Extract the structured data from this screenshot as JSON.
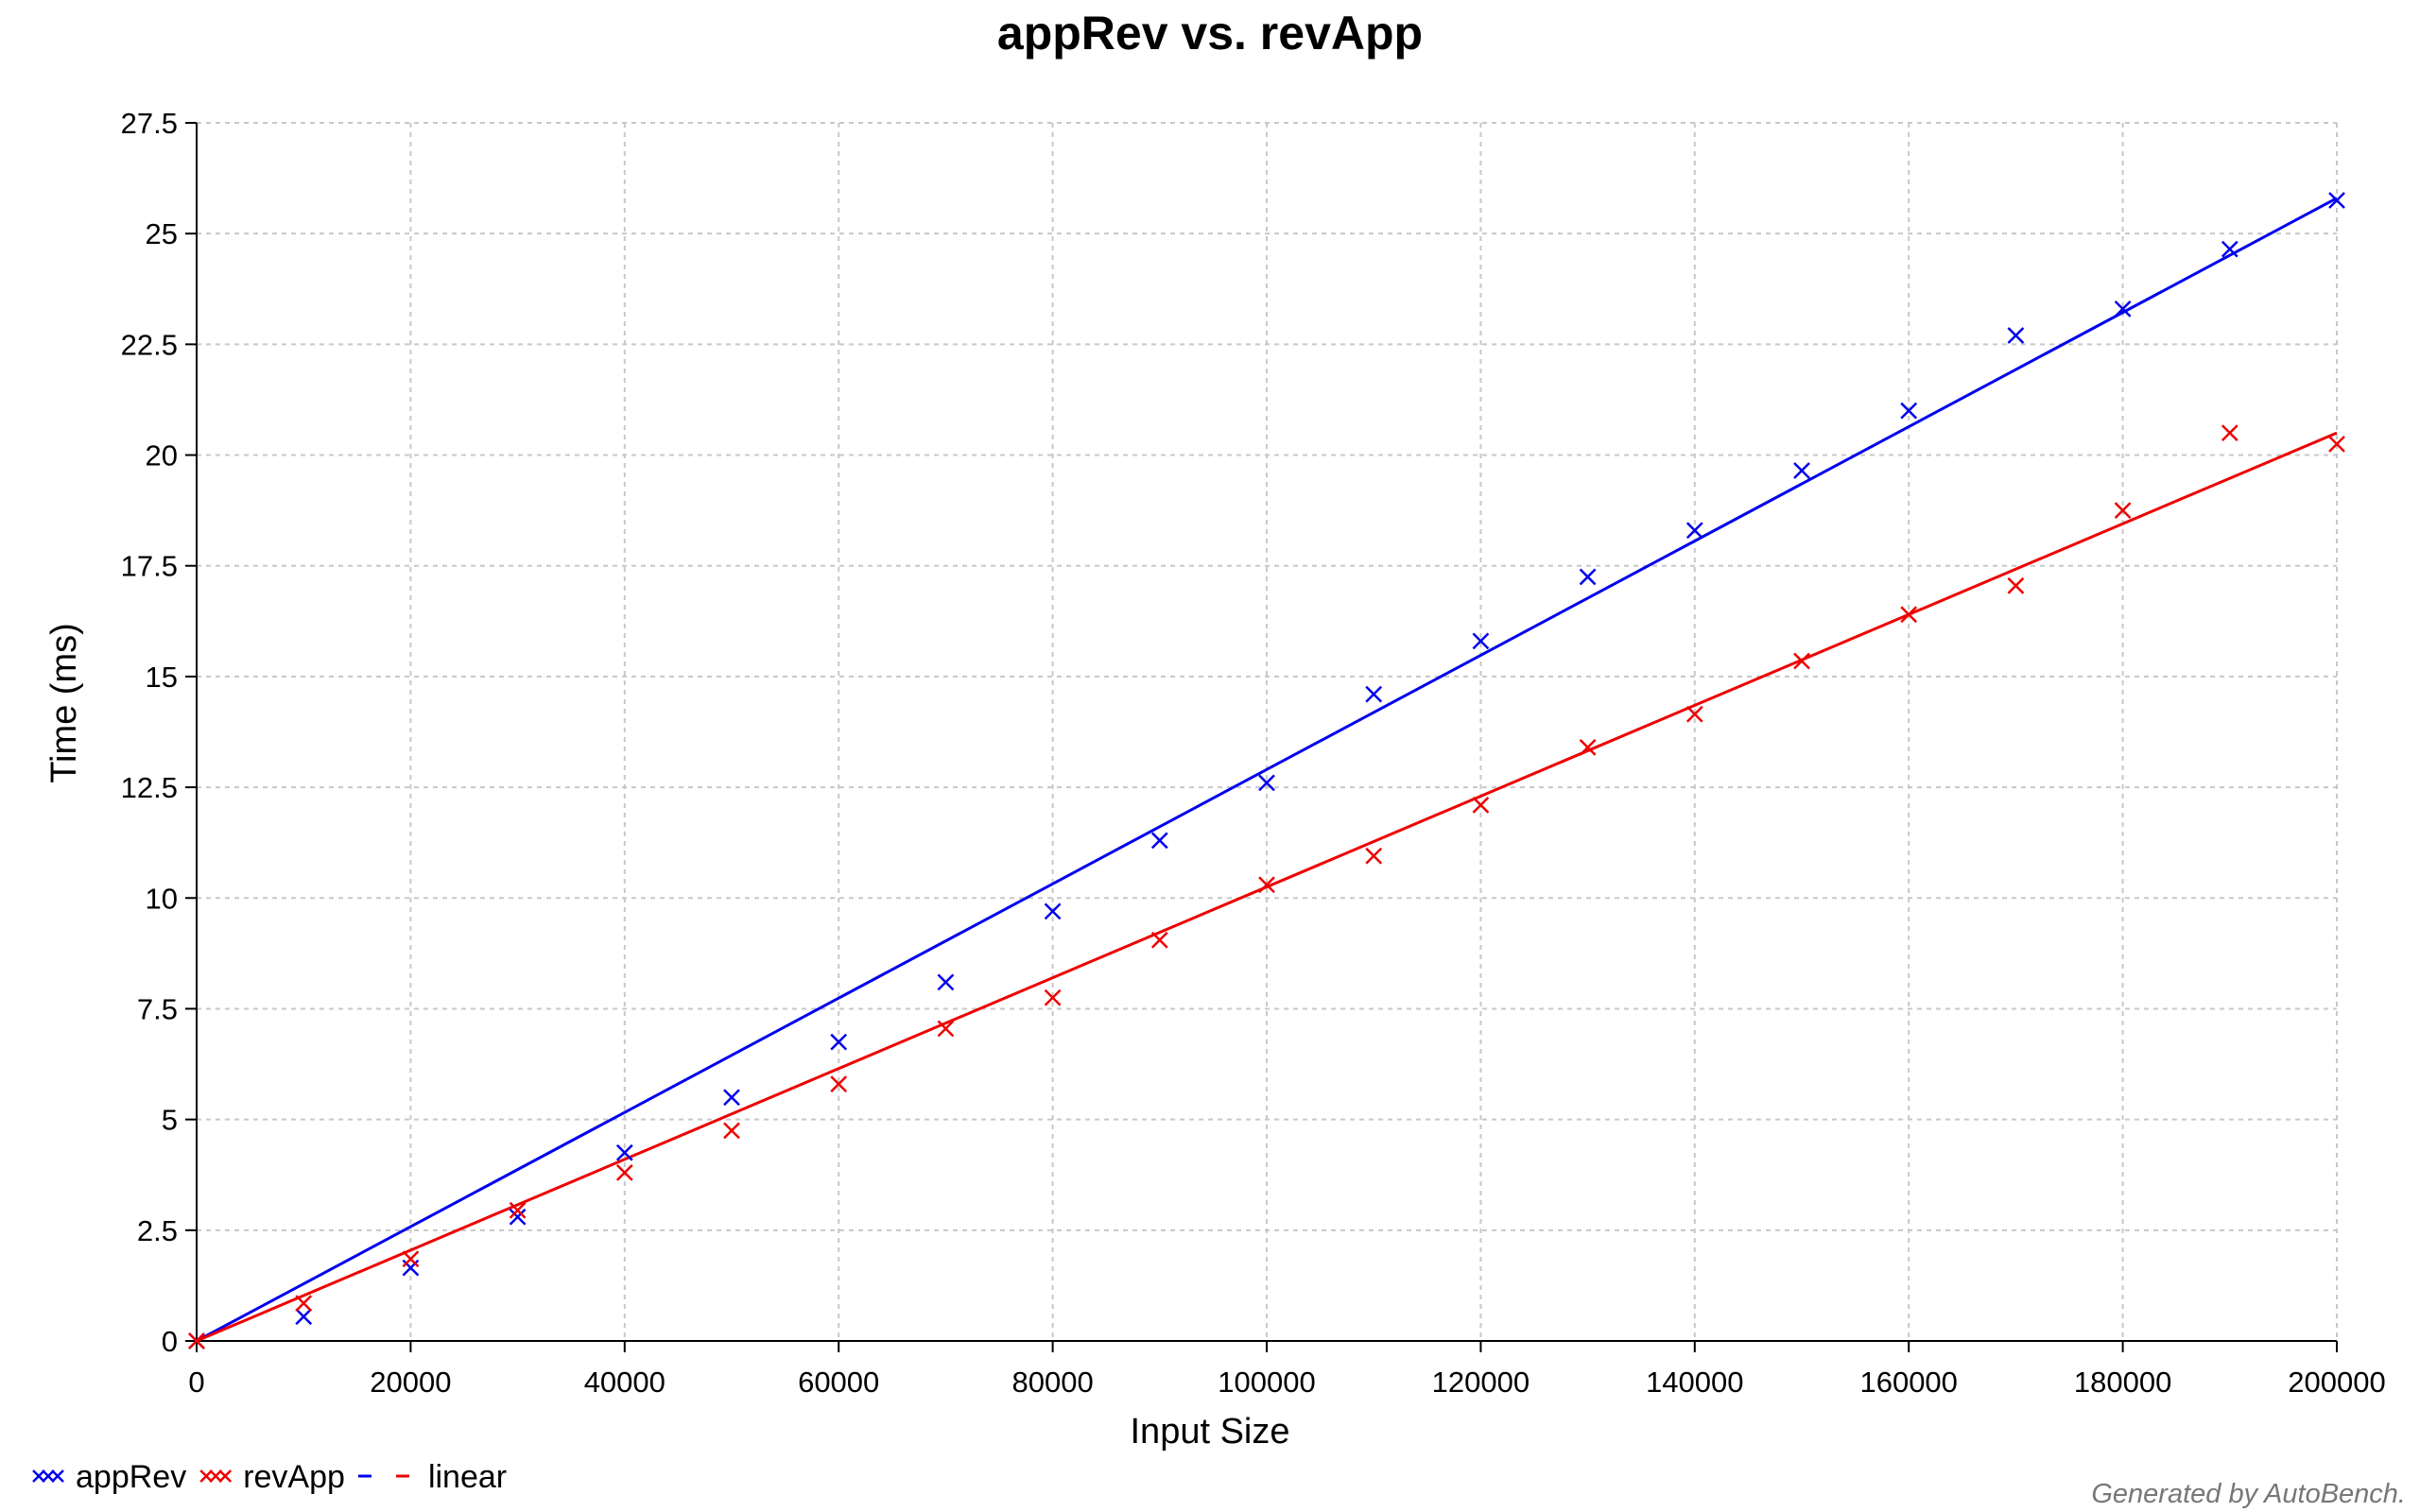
{
  "chart_data": {
    "type": "scatter",
    "title": "appRev vs. revApp",
    "xlabel": "Input Size",
    "ylabel": "Time (ms)",
    "xlim": [
      0,
      200000
    ],
    "ylim": [
      0,
      27.5
    ],
    "x_ticks": [
      0,
      20000,
      40000,
      60000,
      80000,
      100000,
      120000,
      140000,
      160000,
      180000,
      200000
    ],
    "y_ticks": [
      0,
      2.5,
      5,
      7.5,
      10,
      12.5,
      15,
      17.5,
      20,
      22.5,
      25,
      27.5
    ],
    "x_tick_labels": [
      "0",
      "20000",
      "40000",
      "60000",
      "80000",
      "100000",
      "120000",
      "140000",
      "160000",
      "180000",
      "200000"
    ],
    "y_tick_labels": [
      "0",
      "2.5",
      "5",
      "7.5",
      "10",
      "12.5",
      "15",
      "17.5",
      "20",
      "22.5",
      "25",
      "27.5"
    ],
    "grid": true,
    "legend_position": "bottom-left",
    "x": [
      0,
      10000,
      20000,
      30000,
      40000,
      50000,
      60000,
      70000,
      80000,
      90000,
      100000,
      110000,
      120000,
      130000,
      140000,
      150000,
      160000,
      170000,
      180000,
      190000,
      200000
    ],
    "series": [
      {
        "name": "appRev",
        "color": "#0000ee",
        "marker": "x",
        "values": [
          0,
          0.55,
          1.65,
          2.8,
          4.25,
          5.5,
          6.75,
          8.1,
          9.7,
          11.3,
          12.6,
          14.6,
          15.8,
          17.25,
          18.3,
          19.65,
          21.0,
          22.7,
          23.3,
          24.65,
          25.75
        ],
        "fit": {
          "type": "linear",
          "slope": 0.000129,
          "intercept": 0
        }
      },
      {
        "name": "revApp",
        "color": "#ee0000",
        "marker": "x",
        "values": [
          0,
          0.85,
          1.85,
          2.95,
          3.8,
          4.75,
          5.8,
          7.05,
          7.75,
          9.05,
          10.3,
          10.95,
          12.1,
          13.4,
          14.15,
          15.35,
          16.4,
          17.05,
          18.75,
          20.5,
          20.25
        ],
        "fit": {
          "type": "linear",
          "slope": 0.0001025,
          "intercept": 0
        }
      }
    ],
    "legend": [
      {
        "label": "appRev",
        "kind": "marker",
        "color": "#0000ee"
      },
      {
        "label": "revApp",
        "kind": "marker",
        "color": "#ee0000"
      },
      {
        "label": "linear",
        "kind": "line",
        "colors": [
          "#0000ee",
          "#ee0000"
        ]
      }
    ]
  },
  "footer": "Generated by AutoBench."
}
